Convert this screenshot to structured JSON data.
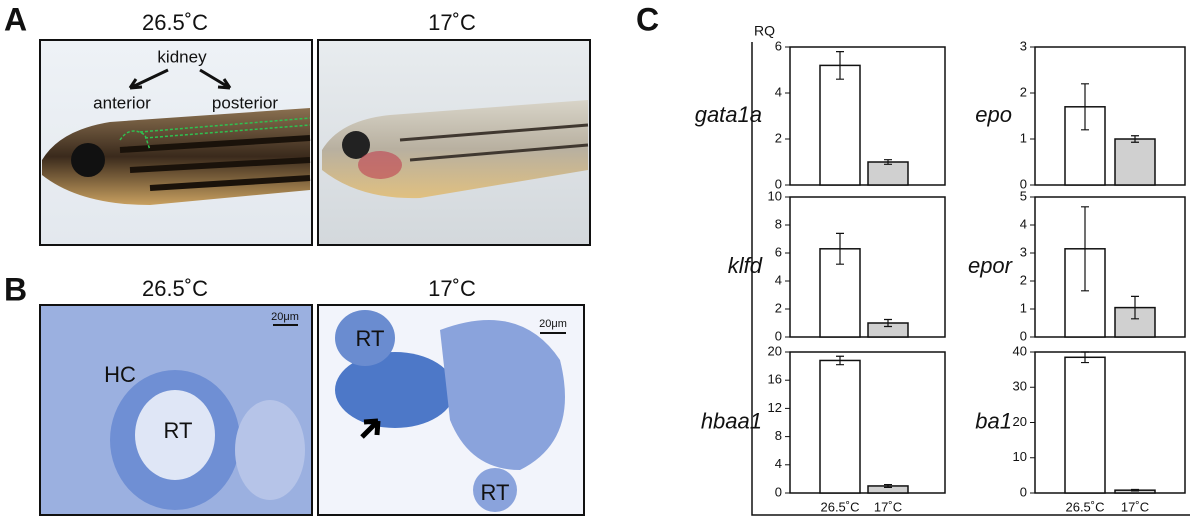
{
  "panel_a": {
    "label": "A",
    "titles": [
      "26.5˚C",
      "17˚C"
    ],
    "annotations": {
      "kidney": "kidney",
      "anterior": "anterior",
      "posterior": "posterior"
    }
  },
  "panel_b": {
    "label": "B",
    "titles": [
      "26.5˚C",
      "17˚C"
    ],
    "annotations": {
      "hc": "HC",
      "rt": [
        "RT",
        "RT",
        "RT"
      ],
      "scale_bars": [
        "20μm",
        "20μm"
      ]
    }
  },
  "panel_c": {
    "label": "C",
    "y_label": "RQ"
  },
  "chart_data": [
    {
      "type": "bar",
      "title": "gata1a",
      "values": [
        5.2,
        1.0
      ],
      "errors": [
        0.6,
        0.1
      ],
      "colors": [
        "#ffffff",
        "#d0d0d0"
      ],
      "ylim": [
        0,
        6
      ],
      "yticks": [
        0,
        2,
        4,
        6
      ]
    },
    {
      "type": "bar",
      "title": "epo",
      "values": [
        1.7,
        1.0
      ],
      "errors": [
        0.5,
        0.07
      ],
      "colors": [
        "#ffffff",
        "#d0d0d0"
      ],
      "ylim": [
        0,
        3
      ],
      "yticks": [
        0,
        1,
        2,
        3
      ]
    },
    {
      "type": "bar",
      "title": "klfd",
      "values": [
        6.3,
        1.0
      ],
      "errors": [
        1.1,
        0.25
      ],
      "colors": [
        "#ffffff",
        "#d0d0d0"
      ],
      "ylim": [
        0,
        10
      ],
      "yticks": [
        0,
        2,
        4,
        6,
        8,
        10
      ]
    },
    {
      "type": "bar",
      "title": "epor",
      "values": [
        3.15,
        1.05
      ],
      "errors": [
        1.5,
        0.4
      ],
      "colors": [
        "#ffffff",
        "#d0d0d0"
      ],
      "ylim": [
        0,
        5
      ],
      "yticks": [
        0,
        1,
        2,
        3,
        4,
        5
      ]
    },
    {
      "type": "bar",
      "title": "hbaa1",
      "categories": [
        "26.5˚C",
        "17˚C"
      ],
      "values": [
        18.8,
        1.0
      ],
      "errors": [
        0.6,
        0.2
      ],
      "colors": [
        "#ffffff",
        "#d0d0d0"
      ],
      "ylim": [
        0,
        20
      ],
      "yticks": [
        0,
        4,
        8,
        12,
        16,
        20
      ]
    },
    {
      "type": "bar",
      "title": "ba1",
      "categories": [
        "26.5˚C",
        "17˚C"
      ],
      "values": [
        38.5,
        0.8
      ],
      "errors": [
        1.5,
        0.2
      ],
      "colors": [
        "#ffffff",
        "#d0d0d0"
      ],
      "ylim": [
        0,
        40
      ],
      "yticks": [
        0,
        10,
        20,
        30,
        40
      ]
    }
  ]
}
